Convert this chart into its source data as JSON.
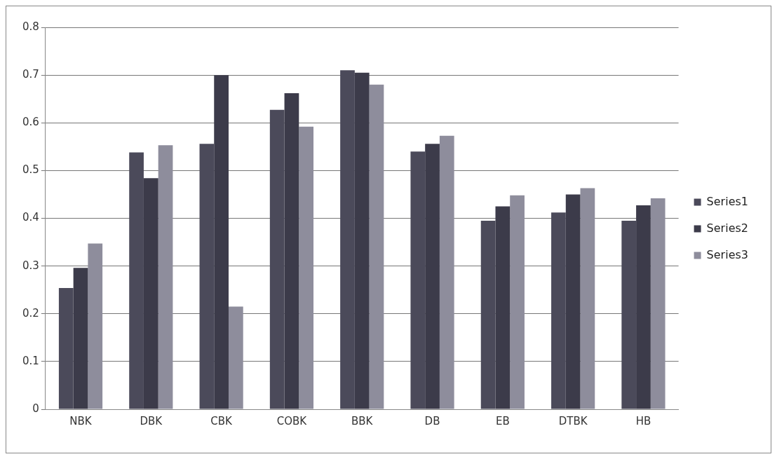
{
  "chart_data": {
    "type": "bar",
    "categories": [
      "NBK",
      "DBK",
      "CBK",
      "COBK",
      "BBK",
      "DB",
      "EB",
      "DTBK",
      "HB"
    ],
    "series": [
      {
        "name": "Series1",
        "color": "#4b4a5a",
        "values": [
          0.254,
          0.538,
          0.556,
          0.627,
          0.71,
          0.54,
          0.395,
          0.412,
          0.395
        ]
      },
      {
        "name": "Series2",
        "color": "#3c3b4a",
        "values": [
          0.296,
          0.484,
          0.7,
          0.662,
          0.705,
          0.556,
          0.425,
          0.45,
          0.427
        ]
      },
      {
        "name": "Series3",
        "color": "#8e8d9c",
        "values": [
          0.347,
          0.553,
          0.215,
          0.592,
          0.68,
          0.573,
          0.448,
          0.463,
          0.442
        ]
      }
    ],
    "ylim": [
      0,
      0.8
    ],
    "yticks": [
      0,
      0.1,
      0.2,
      0.3,
      0.4,
      0.5,
      0.6,
      0.7,
      0.8
    ],
    "grid": "y",
    "legend": "right"
  }
}
